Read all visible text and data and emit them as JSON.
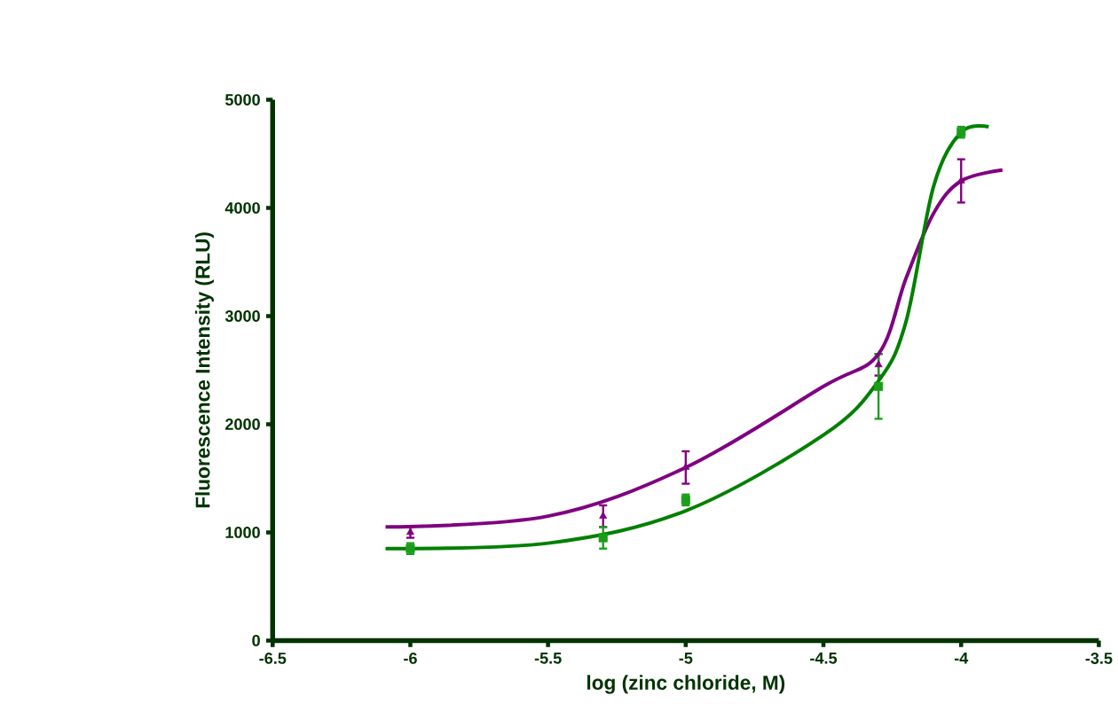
{
  "chart_data": {
    "type": "scatter",
    "xlabel": "log (zinc chloride, M)",
    "ylabel": "Fluorescence Intensity (RLU)",
    "xlim": [
      -6.5,
      -3.5
    ],
    "xticks": [
      -6.5,
      -6,
      -5.5,
      -5,
      -4.5,
      -4,
      -3.5
    ],
    "ylim": [
      0,
      5000
    ],
    "yticks": [
      0,
      1000,
      2000,
      3000,
      4000,
      5000
    ],
    "grid": false,
    "series": [
      {
        "color": "#800080",
        "marker": "triangle",
        "x": [
          -6,
          -5.3,
          -5,
          -4.3,
          -4
        ],
        "values": [
          1000,
          1150,
          1600,
          2550,
          4250
        ],
        "errors": [
          50,
          100,
          150,
          100,
          200
        ]
      },
      {
        "color": "#1a9e1a",
        "marker": "square",
        "x": [
          -6,
          -5.3,
          -5,
          -4.3,
          -4
        ],
        "values": [
          850,
          950,
          1300,
          2350,
          4700
        ],
        "errors": [
          50,
          100,
          50,
          300,
          50
        ]
      },
      {
        "type": "line",
        "color": "#800080",
        "marker": "none",
        "x": [
          -6.09,
          -5.5,
          -5.0,
          -4.5,
          -4.3,
          -4.2,
          -4.1,
          -4.0,
          -3.85
        ],
        "values": [
          1050,
          1150,
          1600,
          2350,
          2650,
          3350,
          3950,
          4250,
          4350
        ]
      },
      {
        "type": "line",
        "color": "#008000",
        "marker": "none",
        "x": [
          -6.09,
          -5.5,
          -5.0,
          -4.5,
          -4.3,
          -4.2,
          -4.1,
          -4.0,
          -3.9
        ],
        "values": [
          850,
          900,
          1200,
          1900,
          2400,
          2950,
          4200,
          4700,
          4750
        ]
      }
    ]
  }
}
